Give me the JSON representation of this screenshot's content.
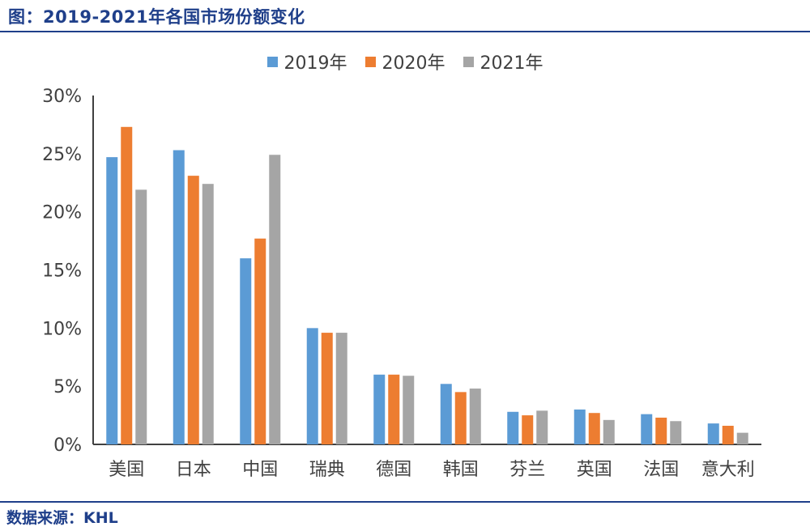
{
  "header": {
    "title": "图：2019-2021年各国市场份额变化"
  },
  "footer": {
    "source": "数据来源：KHL"
  },
  "chart_data": {
    "type": "bar",
    "title": "",
    "xlabel": "",
    "ylabel": "",
    "categories": [
      "美国",
      "日本",
      "中国",
      "瑞典",
      "德国",
      "韩国",
      "芬兰",
      "英国",
      "法国",
      "意大利"
    ],
    "series": [
      {
        "name": "2019年",
        "color": "#5b9bd5",
        "values": [
          24.7,
          25.3,
          16.0,
          10.0,
          6.0,
          5.2,
          2.8,
          3.0,
          2.6,
          1.8
        ]
      },
      {
        "name": "2020年",
        "color": "#ed7d31",
        "values": [
          27.3,
          23.1,
          17.7,
          9.6,
          6.0,
          4.5,
          2.5,
          2.7,
          2.3,
          1.6
        ]
      },
      {
        "name": "2021年",
        "color": "#a5a5a5",
        "values": [
          21.9,
          22.4,
          24.9,
          9.6,
          5.9,
          4.8,
          2.9,
          2.1,
          2.0,
          1.0
        ]
      }
    ],
    "ylim": [
      0,
      30
    ],
    "yticks": [
      0,
      5,
      10,
      15,
      20,
      25,
      30
    ],
    "ytick_labels": [
      "0%",
      "5%",
      "10%",
      "15%",
      "20%",
      "25%",
      "30%"
    ],
    "grid": false,
    "legend_position": "top"
  }
}
